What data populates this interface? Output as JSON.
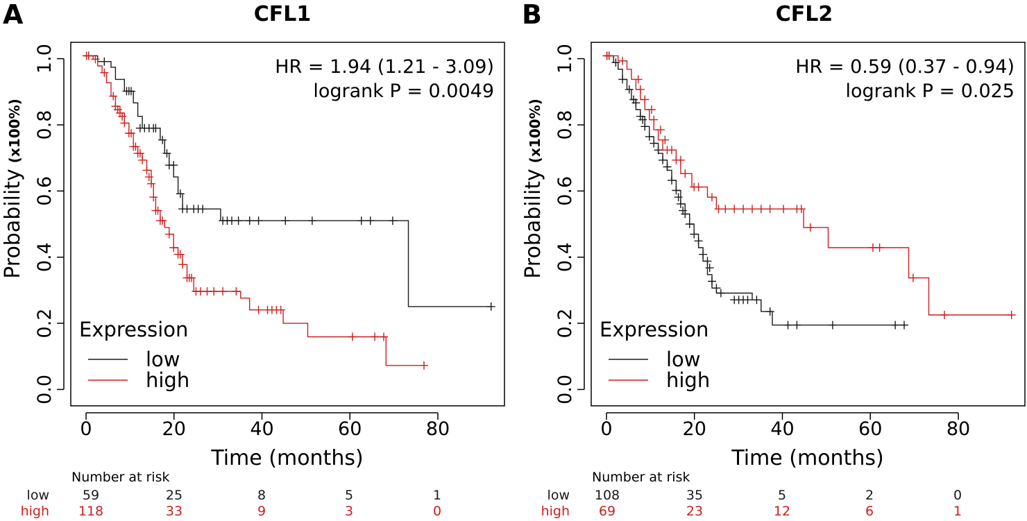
{
  "colors": {
    "low": "#1a1a1a",
    "high": "#cc1f1f",
    "axis": "#000000"
  },
  "chart_data": [
    {
      "type": "line",
      "panel_label": "A",
      "title": "CFL1",
      "xlabel": "Time (months)",
      "ylabel": "Probability",
      "ylabel_unit": "(x100%)",
      "xlim": [
        -3,
        94
      ],
      "ylim": [
        -0.04,
        1.04
      ],
      "xticks": [
        "0",
        "20",
        "40",
        "60",
        "80"
      ],
      "yticks": [
        "0.0",
        "0.2",
        "0.4",
        "0.6",
        "0.8",
        "1.0"
      ],
      "hr_text": "HR = 1.94 (1.21 - 3.09)",
      "p_text": "logrank P = 0.0049",
      "legend_title": "Expression",
      "series": [
        {
          "name": "low",
          "steps": [
            [
              0,
              1.0
            ],
            [
              3,
              0.983
            ],
            [
              6,
              0.966
            ],
            [
              7,
              0.93
            ],
            [
              9,
              0.895
            ],
            [
              11,
              0.86
            ],
            [
              12,
              0.82
            ],
            [
              13,
              0.785
            ],
            [
              17,
              0.75
            ],
            [
              18,
              0.71
            ],
            [
              19,
              0.675
            ],
            [
              20,
              0.64
            ],
            [
              21,
              0.59
            ],
            [
              22,
              0.545
            ],
            [
              30.5,
              0.51
            ],
            [
              72.5,
              0.255
            ],
            [
              91,
              0.255
            ]
          ],
          "censors": [
            [
              1,
              1.0
            ],
            [
              4.5,
              0.983
            ],
            [
              9.5,
              0.895
            ],
            [
              10,
              0.895
            ],
            [
              10.5,
              0.895
            ],
            [
              12.5,
              0.785
            ],
            [
              13.5,
              0.785
            ],
            [
              14.5,
              0.785
            ],
            [
              15.5,
              0.785
            ],
            [
              16,
              0.785
            ],
            [
              17.5,
              0.75
            ],
            [
              18.5,
              0.71
            ],
            [
              19,
              0.675
            ],
            [
              20,
              0.675
            ],
            [
              21.5,
              0.59
            ],
            [
              22,
              0.545
            ],
            [
              23,
              0.545
            ],
            [
              24.5,
              0.545
            ],
            [
              25.5,
              0.545
            ],
            [
              26.5,
              0.545
            ],
            [
              31,
              0.51
            ],
            [
              32,
              0.51
            ],
            [
              33,
              0.51
            ],
            [
              34.5,
              0.51
            ],
            [
              37,
              0.51
            ],
            [
              39,
              0.51
            ],
            [
              45,
              0.51
            ],
            [
              51,
              0.51
            ],
            [
              62,
              0.51
            ],
            [
              64,
              0.51
            ],
            [
              69,
              0.51
            ],
            [
              91,
              0.255
            ]
          ]
        },
        {
          "name": "high",
          "steps": [
            [
              0,
              1.0
            ],
            [
              2,
              0.99
            ],
            [
              3,
              0.97
            ],
            [
              4,
              0.95
            ],
            [
              5,
              0.92
            ],
            [
              6,
              0.88
            ],
            [
              7,
              0.85
            ],
            [
              8,
              0.83
            ],
            [
              9,
              0.8
            ],
            [
              10,
              0.77
            ],
            [
              11,
              0.73
            ],
            [
              12,
              0.71
            ],
            [
              13,
              0.69
            ],
            [
              14,
              0.66
            ],
            [
              15,
              0.62
            ],
            [
              15.5,
              0.58
            ],
            [
              16,
              0.54
            ],
            [
              17,
              0.51
            ],
            [
              18,
              0.49
            ],
            [
              19,
              0.47
            ],
            [
              20,
              0.43
            ],
            [
              21,
              0.41
            ],
            [
              22,
              0.38
            ],
            [
              23,
              0.34
            ],
            [
              24.5,
              0.3
            ],
            [
              35,
              0.28
            ],
            [
              37,
              0.245
            ],
            [
              44.5,
              0.205
            ],
            [
              50,
              0.165
            ],
            [
              67.5,
              0.08
            ],
            [
              76,
              0.08
            ]
          ],
          "censors": [
            [
              0.5,
              1.0
            ],
            [
              1,
              1.0
            ],
            [
              2.5,
              0.99
            ],
            [
              4.5,
              0.95
            ],
            [
              6.5,
              0.88
            ],
            [
              7,
              0.85
            ],
            [
              7.5,
              0.84
            ],
            [
              8,
              0.83
            ],
            [
              8.5,
              0.82
            ],
            [
              9,
              0.8
            ],
            [
              10,
              0.77
            ],
            [
              10.5,
              0.77
            ],
            [
              11,
              0.73
            ],
            [
              11.5,
              0.73
            ],
            [
              12,
              0.71
            ],
            [
              12.5,
              0.71
            ],
            [
              13,
              0.69
            ],
            [
              14,
              0.66
            ],
            [
              14.5,
              0.64
            ],
            [
              15,
              0.62
            ],
            [
              15.5,
              0.58
            ],
            [
              16,
              0.54
            ],
            [
              16.5,
              0.54
            ],
            [
              17,
              0.51
            ],
            [
              17.5,
              0.51
            ],
            [
              19,
              0.47
            ],
            [
              20,
              0.43
            ],
            [
              21,
              0.41
            ],
            [
              21.5,
              0.41
            ],
            [
              22,
              0.38
            ],
            [
              23,
              0.34
            ],
            [
              23.5,
              0.34
            ],
            [
              24,
              0.34
            ],
            [
              25,
              0.3
            ],
            [
              26,
              0.3
            ],
            [
              27.5,
              0.3
            ],
            [
              29,
              0.3
            ],
            [
              31,
              0.3
            ],
            [
              34,
              0.3
            ],
            [
              39,
              0.245
            ],
            [
              41,
              0.245
            ],
            [
              42,
              0.245
            ],
            [
              43,
              0.245
            ],
            [
              44,
              0.245
            ],
            [
              60,
              0.165
            ],
            [
              65,
              0.165
            ],
            [
              67,
              0.165
            ],
            [
              76,
              0.08
            ]
          ]
        }
      ],
      "risk_table": {
        "title": "Number at risk",
        "times": [
          "0",
          "20",
          "40",
          "60",
          "80"
        ],
        "rows": [
          {
            "name": "low",
            "values": [
              "59",
              "25",
              "8",
              "5",
              "1"
            ]
          },
          {
            "name": "high",
            "values": [
              "118",
              "33",
              "9",
              "3",
              "0"
            ]
          }
        ]
      }
    },
    {
      "type": "line",
      "panel_label": "B",
      "title": "CFL2",
      "xlabel": "Time (months)",
      "ylabel": "Probability",
      "ylabel_unit": "(x100%)",
      "xlim": [
        -3,
        94
      ],
      "ylim": [
        -0.04,
        1.04
      ],
      "xticks": [
        "0",
        "20",
        "40",
        "60",
        "80"
      ],
      "yticks": [
        "0.0",
        "0.2",
        "0.4",
        "0.6",
        "0.8",
        "1.0"
      ],
      "hr_text": "HR = 0.59 (0.37 - 0.94)",
      "p_text": "logrank P = 0.025",
      "legend_title": "Expression",
      "series": [
        {
          "name": "low",
          "steps": [
            [
              0,
              1.0
            ],
            [
              2,
              0.98
            ],
            [
              3,
              0.96
            ],
            [
              4,
              0.93
            ],
            [
              5,
              0.9
            ],
            [
              6,
              0.87
            ],
            [
              7,
              0.84
            ],
            [
              8,
              0.82
            ],
            [
              9,
              0.79
            ],
            [
              10,
              0.76
            ],
            [
              11,
              0.74
            ],
            [
              12,
              0.71
            ],
            [
              13,
              0.69
            ],
            [
              14,
              0.66
            ],
            [
              15,
              0.63
            ],
            [
              16,
              0.6
            ],
            [
              17,
              0.56
            ],
            [
              18,
              0.53
            ],
            [
              19,
              0.5
            ],
            [
              20,
              0.47
            ],
            [
              21,
              0.43
            ],
            [
              22,
              0.39
            ],
            [
              23,
              0.35
            ],
            [
              24,
              0.31
            ],
            [
              25,
              0.295
            ],
            [
              33,
              0.275
            ],
            [
              35,
              0.24
            ],
            [
              37.5,
              0.2
            ],
            [
              67.5,
              0.2
            ]
          ],
          "censors": [
            [
              0.5,
              1.0
            ],
            [
              1,
              1.0
            ],
            [
              2.5,
              0.98
            ],
            [
              4,
              0.93
            ],
            [
              5.5,
              0.9
            ],
            [
              6.5,
              0.87
            ],
            [
              7,
              0.86
            ],
            [
              8,
              0.82
            ],
            [
              8.5,
              0.81
            ],
            [
              9,
              0.79
            ],
            [
              10,
              0.76
            ],
            [
              11,
              0.74
            ],
            [
              12,
              0.72
            ],
            [
              13,
              0.69
            ],
            [
              14,
              0.67
            ],
            [
              15,
              0.63
            ],
            [
              16,
              0.6
            ],
            [
              16.5,
              0.58
            ],
            [
              17,
              0.56
            ],
            [
              17.5,
              0.54
            ],
            [
              18,
              0.53
            ],
            [
              19,
              0.5
            ],
            [
              20,
              0.47
            ],
            [
              21,
              0.45
            ],
            [
              22,
              0.41
            ],
            [
              23,
              0.39
            ],
            [
              23.5,
              0.37
            ],
            [
              24,
              0.33
            ],
            [
              25,
              0.31
            ],
            [
              26,
              0.295
            ],
            [
              29,
              0.275
            ],
            [
              30,
              0.275
            ],
            [
              31,
              0.275
            ],
            [
              32,
              0.275
            ],
            [
              34,
              0.275
            ],
            [
              37,
              0.24
            ],
            [
              41,
              0.2
            ],
            [
              43,
              0.2
            ],
            [
              51,
              0.2
            ],
            [
              65,
              0.2
            ],
            [
              67,
              0.2
            ]
          ]
        },
        {
          "name": "high",
          "steps": [
            [
              0,
              1.0
            ],
            [
              3,
              0.985
            ],
            [
              5,
              0.96
            ],
            [
              6,
              0.93
            ],
            [
              7,
              0.9
            ],
            [
              8,
              0.87
            ],
            [
              9,
              0.84
            ],
            [
              10,
              0.81
            ],
            [
              11,
              0.78
            ],
            [
              12,
              0.75
            ],
            [
              13,
              0.72
            ],
            [
              16,
              0.69
            ],
            [
              17,
              0.65
            ],
            [
              19.5,
              0.61
            ],
            [
              23,
              0.58
            ],
            [
              25,
              0.545
            ],
            [
              44.5,
              0.49
            ],
            [
              50,
              0.43
            ],
            [
              68,
              0.34
            ],
            [
              72.5,
              0.23
            ],
            [
              91,
              0.23
            ]
          ],
          "censors": [
            [
              0.5,
              1.0
            ],
            [
              1,
              1.0
            ],
            [
              4,
              0.985
            ],
            [
              7.5,
              0.93
            ],
            [
              8,
              0.9
            ],
            [
              9,
              0.87
            ],
            [
              10.5,
              0.84
            ],
            [
              11,
              0.81
            ],
            [
              12.5,
              0.78
            ],
            [
              13.5,
              0.75
            ],
            [
              14,
              0.72
            ],
            [
              15,
              0.72
            ],
            [
              16,
              0.69
            ],
            [
              17,
              0.69
            ],
            [
              18,
              0.65
            ],
            [
              20,
              0.61
            ],
            [
              21,
              0.61
            ],
            [
              24,
              0.58
            ],
            [
              25.5,
              0.545
            ],
            [
              27,
              0.545
            ],
            [
              29,
              0.545
            ],
            [
              31,
              0.545
            ],
            [
              33,
              0.545
            ],
            [
              35,
              0.545
            ],
            [
              37,
              0.545
            ],
            [
              40,
              0.545
            ],
            [
              43,
              0.545
            ],
            [
              44,
              0.545
            ],
            [
              46,
              0.49
            ],
            [
              60,
              0.43
            ],
            [
              61.5,
              0.43
            ],
            [
              69,
              0.34
            ],
            [
              76,
              0.23
            ],
            [
              91,
              0.23
            ]
          ]
        }
      ],
      "risk_table": {
        "title": "Number at risk",
        "times": [
          "0",
          "20",
          "40",
          "60",
          "80"
        ],
        "rows": [
          {
            "name": "low",
            "values": [
              "108",
              "35",
              "5",
              "2",
              "0"
            ]
          },
          {
            "name": "high",
            "values": [
              "69",
              "23",
              "12",
              "6",
              "1"
            ]
          }
        ]
      }
    }
  ]
}
